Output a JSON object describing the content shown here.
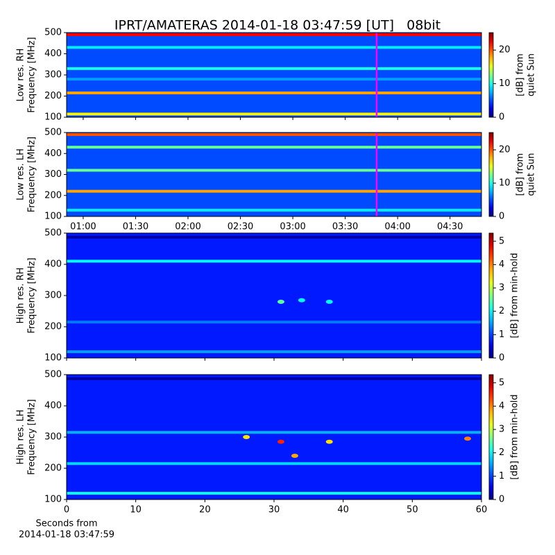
{
  "chart_data": {
    "type": "heatmap",
    "title": "IPRT/AMATERAS 2014-01-18 03:47:59 [UT]   08bit",
    "time_axis": {
      "xlim": [
        50.5,
        288
      ],
      "xticks": [
        {
          "value": 60,
          "label": "01:00"
        },
        {
          "value": 90,
          "label": "01:30"
        },
        {
          "value": 120,
          "label": "02:00"
        },
        {
          "value": 150,
          "label": "02:30"
        },
        {
          "value": 180,
          "label": "03:00"
        },
        {
          "value": 210,
          "label": "03:30"
        },
        {
          "value": 240,
          "label": "04:00"
        },
        {
          "value": 270,
          "label": "04:30"
        }
      ]
    },
    "seconds_axis": {
      "xlim": [
        0,
        60
      ],
      "xticks": [
        0,
        10,
        20,
        30,
        40,
        50,
        60
      ],
      "xlabel": [
        "Seconds from",
        "2014-01-18 03:47:59"
      ]
    },
    "panels": [
      {
        "xaxis": "time",
        "ylabel": [
          "Low res. RH",
          "Frequency [MHz]"
        ],
        "ylim": [
          100,
          500
        ],
        "yticks": [
          100,
          200,
          300,
          400,
          500
        ],
        "clim": [
          0,
          25.2
        ],
        "cticks": [
          0,
          10,
          20
        ],
        "colorbar_label": [
          "[dB] from",
          "quiet Sun"
        ],
        "background": 5,
        "bands": [
          {
            "freq": 490,
            "value": 22
          },
          {
            "freq": 430,
            "value": 9
          },
          {
            "freq": 330,
            "value": 10
          },
          {
            "freq": 280,
            "value": 7
          },
          {
            "freq": 215,
            "value": 18
          },
          {
            "freq": 115,
            "value": 16
          }
        ],
        "spots": [],
        "marker": 228,
        "marker_color": "#ff00ff"
      },
      {
        "xaxis": "time",
        "ylabel": [
          "Low res. LH",
          "Frequency [MHz]"
        ],
        "ylim": [
          100,
          500
        ],
        "yticks": [
          100,
          200,
          300,
          400,
          500
        ],
        "clim": [
          0,
          25.2
        ],
        "cticks": [
          0,
          10,
          20
        ],
        "colorbar_label": [
          "[dB] from",
          "quiet Sun"
        ],
        "background": 5,
        "bands": [
          {
            "freq": 490,
            "value": 20
          },
          {
            "freq": 430,
            "value": 12
          },
          {
            "freq": 320,
            "value": 12
          },
          {
            "freq": 220,
            "value": 18
          },
          {
            "freq": 130,
            "value": 9
          }
        ],
        "spots": [],
        "marker": 228,
        "marker_color": "#ff00ff"
      },
      {
        "xaxis": "seconds",
        "ylabel": [
          "High res. RH",
          "Frequency [MHz]"
        ],
        "ylim": [
          100,
          500
        ],
        "yticks": [
          100,
          200,
          300,
          400,
          500
        ],
        "clim": [
          0,
          5.35
        ],
        "cticks": [
          0,
          1,
          2,
          3,
          4,
          5
        ],
        "colorbar_label": [
          "[dB] from min-hold"
        ],
        "background": 0.8,
        "bands": [
          {
            "freq": 487,
            "value": 0.2
          },
          {
            "freq": 410,
            "value": 2
          },
          {
            "freq": 215,
            "value": 1.3
          },
          {
            "freq": 120,
            "value": 1.5
          }
        ],
        "spots": [
          {
            "x": 31,
            "y": 280,
            "value": 2.5
          },
          {
            "x": 34,
            "y": 285,
            "value": 2
          },
          {
            "x": 38,
            "y": 280,
            "value": 2
          }
        ]
      },
      {
        "xaxis": "seconds",
        "ylabel": [
          "High res. LH",
          "Frequency [MHz]"
        ],
        "ylim": [
          100,
          500
        ],
        "yticks": [
          100,
          200,
          300,
          400,
          500
        ],
        "clim": [
          0,
          5.35
        ],
        "cticks": [
          0,
          1,
          2,
          3,
          4,
          5
        ],
        "colorbar_label": [
          "[dB] from min-hold"
        ],
        "background": 0.8,
        "bands": [
          {
            "freq": 487,
            "value": 0.2
          },
          {
            "freq": 315,
            "value": 1.6
          },
          {
            "freq": 215,
            "value": 1.8
          },
          {
            "freq": 120,
            "value": 2
          }
        ],
        "spots": [
          {
            "x": 31,
            "y": 285,
            "value": 4.5
          },
          {
            "x": 33,
            "y": 240,
            "value": 3.8
          },
          {
            "x": 26,
            "y": 300,
            "value": 3.5
          },
          {
            "x": 38,
            "y": 285,
            "value": 3.5
          },
          {
            "x": 58,
            "y": 295,
            "value": 4
          }
        ]
      }
    ]
  }
}
